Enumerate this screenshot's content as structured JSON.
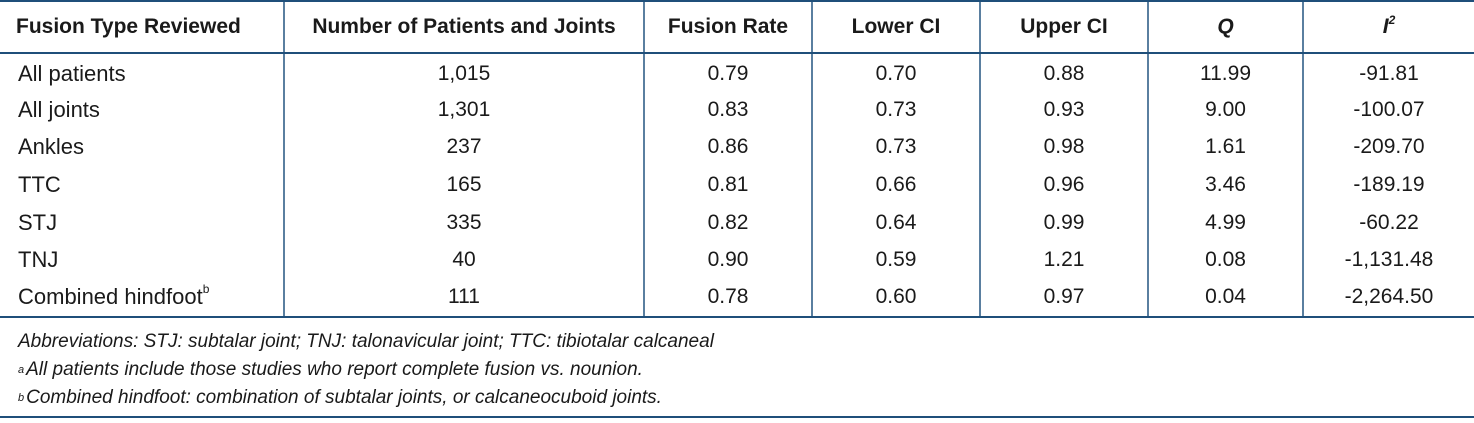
{
  "table": {
    "headers": {
      "fusion_type": "Fusion Type Reviewed",
      "patients_joints": "Number of Patients and Joints",
      "fusion_rate": "Fusion Rate",
      "lower_ci": "Lower CI",
      "upper_ci": "Upper CI",
      "q": "Q",
      "i2_base": "I",
      "i2_sup": "2"
    },
    "rows": [
      {
        "type": "All patients",
        "sup": "",
        "n": "1,015",
        "rate": "0.79",
        "lower": "0.70",
        "upper": "0.88",
        "q": "11.99",
        "i2": "-91.81"
      },
      {
        "type": "All joints",
        "sup": "",
        "n": "1,301",
        "rate": "0.83",
        "lower": "0.73",
        "upper": "0.93",
        "q": "9.00",
        "i2": "-100.07"
      },
      {
        "type": "Ankles",
        "sup": "",
        "n": "237",
        "rate": "0.86",
        "lower": "0.73",
        "upper": "0.98",
        "q": "1.61",
        "i2": "-209.70"
      },
      {
        "type": "TTC",
        "sup": "",
        "n": "165",
        "rate": "0.81",
        "lower": "0.66",
        "upper": "0.96",
        "q": "3.46",
        "i2": "-189.19"
      },
      {
        "type": "STJ",
        "sup": "",
        "n": "335",
        "rate": "0.82",
        "lower": "0.64",
        "upper": "0.99",
        "q": "4.99",
        "i2": "-60.22"
      },
      {
        "type": "TNJ",
        "sup": "",
        "n": "40",
        "rate": "0.90",
        "lower": "0.59",
        "upper": "1.21",
        "q": "0.08",
        "i2": "-1,131.48"
      },
      {
        "type": "Combined hindfoot",
        "sup": "b",
        "n": "111",
        "rate": "0.78",
        "lower": "0.60",
        "upper": "0.97",
        "q": "0.04",
        "i2": "-2,264.50"
      }
    ]
  },
  "notes": {
    "abbreviations": "Abbreviations: STJ: subtalar joint; TNJ: talonavicular joint; TTC: tibiotalar calcaneal",
    "note_a_marker": "a",
    "note_a": "All patients include those studies who report complete fusion vs. nounion.",
    "note_b_marker": "b",
    "note_b": "Combined hindfoot: combination of subtalar joints, or calcaneocuboid joints."
  },
  "colors": {
    "rule": "#1f4f7a",
    "divider": "#5a7fa0"
  }
}
